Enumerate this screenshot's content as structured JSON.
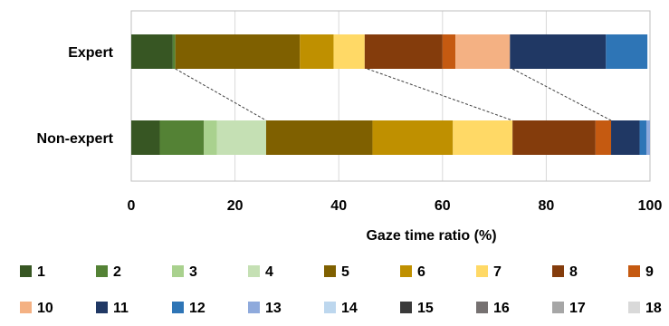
{
  "chart_data": {
    "type": "bar",
    "orientation": "horizontal",
    "stacked": true,
    "title": "",
    "xlabel": "Gaze time ratio (%)",
    "ylabel": "",
    "xlim": [
      0,
      100
    ],
    "xticks": [
      "0",
      "20",
      "40",
      "60",
      "80",
      "100"
    ],
    "grid": true,
    "legend_position": "bottom",
    "categories": [
      "Expert",
      "Non-expert"
    ],
    "series": [
      {
        "name": "1",
        "color": "#375623",
        "values": [
          8.0,
          5.5
        ]
      },
      {
        "name": "2",
        "color": "#548235",
        "values": [
          0.5,
          8.5
        ]
      },
      {
        "name": "3",
        "color": "#a9d18e",
        "values": [
          0.0,
          2.5
        ]
      },
      {
        "name": "4",
        "color": "#c5e0b4",
        "values": [
          0.0,
          9.5
        ]
      },
      {
        "name": "5",
        "color": "#7f6000",
        "values": [
          24.0,
          20.5
        ]
      },
      {
        "name": "6",
        "color": "#bf9000",
        "values": [
          6.5,
          15.5
        ]
      },
      {
        "name": "7",
        "color": "#ffd966",
        "values": [
          6.0,
          11.5
        ]
      },
      {
        "name": "8",
        "color": "#843c0c",
        "values": [
          15.0,
          16.0
        ]
      },
      {
        "name": "9",
        "color": "#c55a11",
        "values": [
          2.5,
          3.0
        ]
      },
      {
        "name": "10",
        "color": "#f4b183",
        "values": [
          10.5,
          0.0
        ]
      },
      {
        "name": "11",
        "color": "#203864",
        "values": [
          18.5,
          5.5
        ]
      },
      {
        "name": "12",
        "color": "#2e75b6",
        "values": [
          8.0,
          1.3
        ]
      },
      {
        "name": "13",
        "color": "#8faadc",
        "values": [
          0.0,
          0.7
        ]
      },
      {
        "name": "14",
        "color": "#bdd7ee",
        "values": [
          0.0,
          0.0
        ]
      },
      {
        "name": "15",
        "color": "#3a3a3a",
        "values": [
          0.0,
          0.0
        ]
      },
      {
        "name": "16",
        "color": "#767171",
        "values": [
          0.0,
          0.0
        ]
      },
      {
        "name": "17",
        "color": "#a6a6a6",
        "values": [
          0.0,
          0.0
        ]
      },
      {
        "name": "18",
        "color": "#d9d9d9",
        "values": [
          0.0,
          0.0
        ]
      }
    ],
    "connectors": [
      {
        "expert_at": 8.5,
        "nonexpert_at": 26.0
      },
      {
        "expert_at": 45.5,
        "nonexpert_at": 73.5
      },
      {
        "expert_at": 73.5,
        "nonexpert_at": 92.5
      }
    ]
  }
}
